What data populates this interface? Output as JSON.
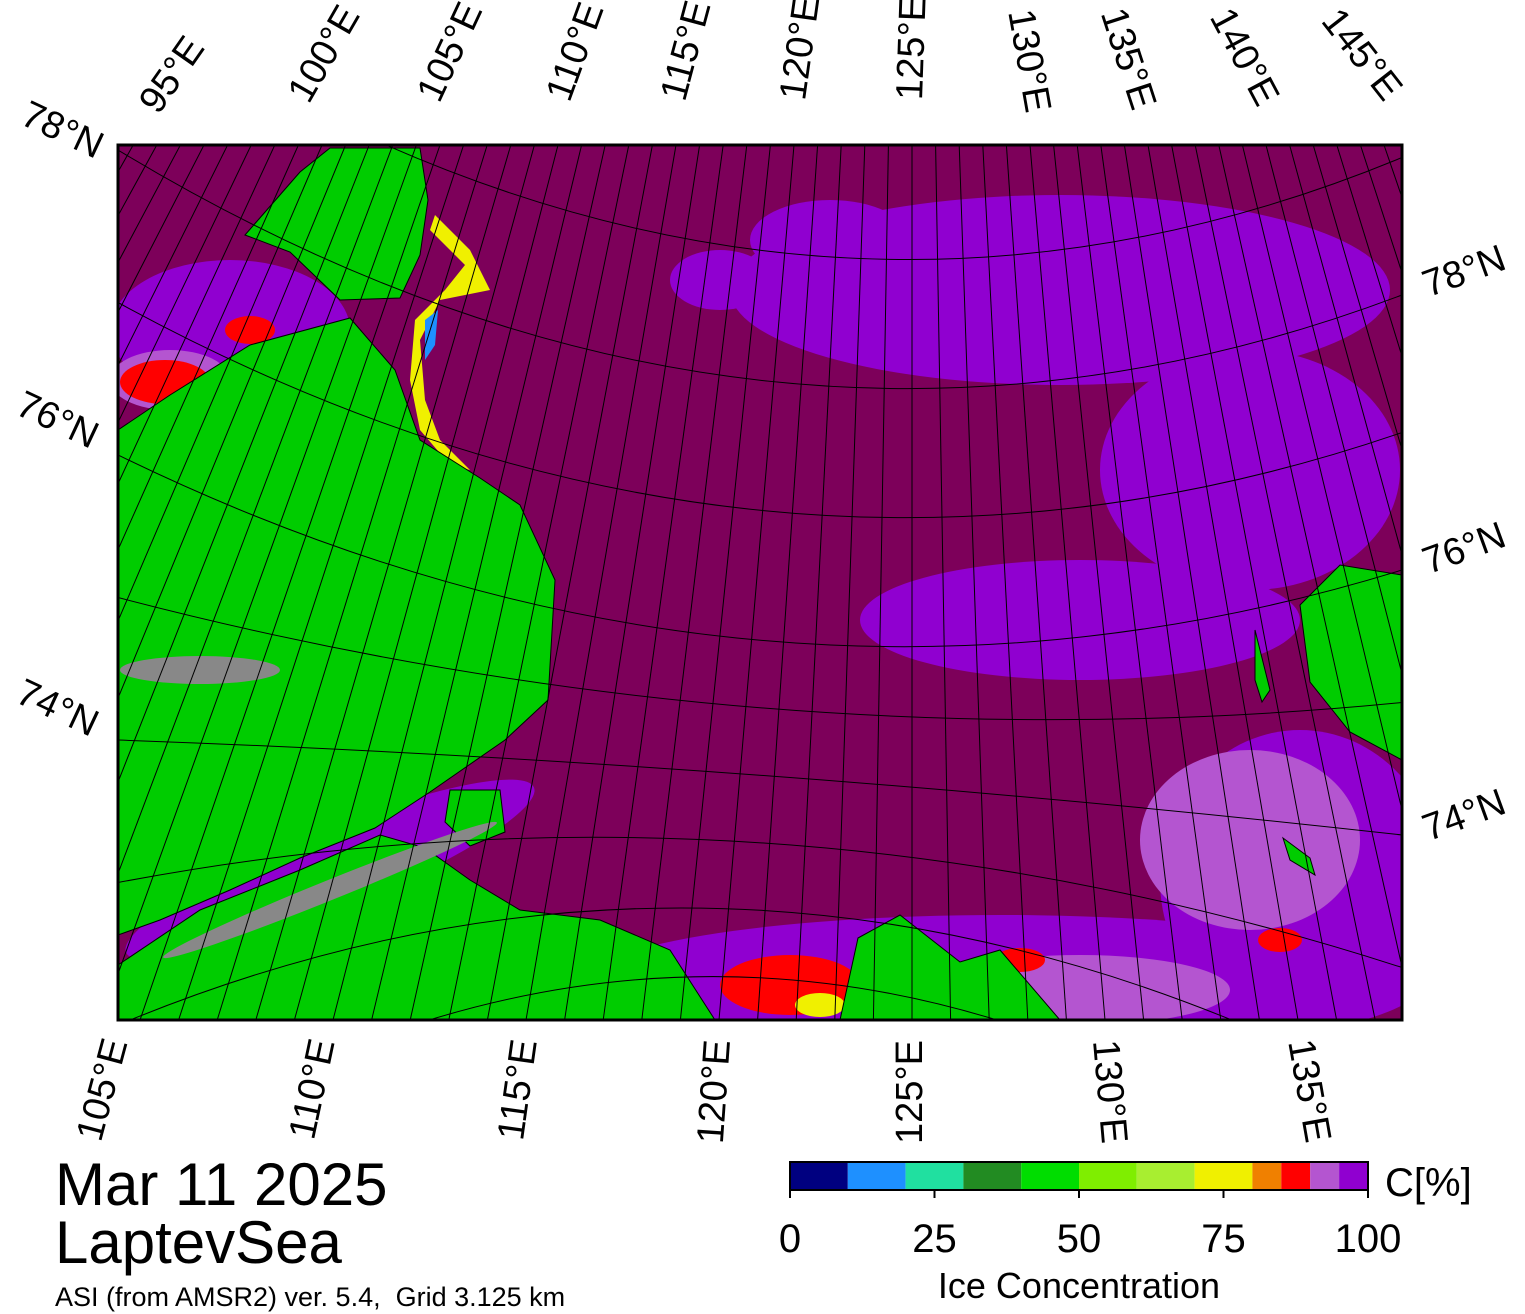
{
  "title": "Mar 11 2025",
  "region": "LaptevSea",
  "subtitle": "ASI (from AMSR2) ver. 5.4,  Grid 3.125 km",
  "map": {
    "top_lon_labels": [
      "95°E",
      "100°E",
      "105°E",
      "110°E",
      "115°E",
      "120°E",
      "125°E",
      "130°E",
      "135°E",
      "140°E",
      "145°E"
    ],
    "right_lat_labels": [
      "78°N",
      "76°N",
      "74°N"
    ],
    "left_lat_labels": [
      "78°N",
      "76°N",
      "74°N"
    ],
    "bottom_lon_labels": [
      "105°E",
      "110°E",
      "115°E",
      "120°E",
      "125°E",
      "130°E",
      "135°E"
    ]
  },
  "colorbar": {
    "unit": "C[%]",
    "label": "Ice Concentration",
    "bins": [
      0,
      10,
      20,
      30,
      40,
      50,
      60,
      70,
      80,
      85,
      90,
      95,
      100
    ],
    "colors": [
      "#000080",
      "#1e90ff",
      "#20e0a0",
      "#228b22",
      "#00dd00",
      "#7fee00",
      "#a8ee30",
      "#f0f000",
      "#f08000",
      "#ff0000",
      "#b455d0",
      "#9000d0"
    ],
    "ticks": [
      0,
      25,
      50,
      75,
      100
    ]
  }
}
